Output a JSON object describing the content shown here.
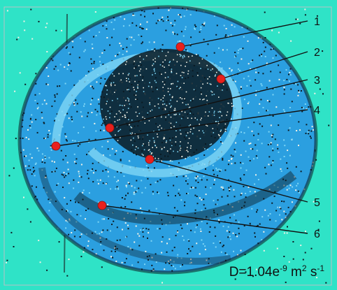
{
  "colors": {
    "background": "#2fe3c7",
    "outer_band": "#2b9fe0",
    "light_band": "#7fd6f5",
    "dark_speckle": "#0b1a22",
    "white_speckle": "#f2f2e6",
    "marker": "#e8201c",
    "leader": "#111111"
  },
  "callouts": [
    {
      "label": "1"
    },
    {
      "label": "2"
    },
    {
      "label": "3"
    },
    {
      "label": "4"
    },
    {
      "label": "5"
    },
    {
      "label": "6"
    }
  ],
  "caption": {
    "prefix": "D=1.04e",
    "exp1": "-9",
    "mid": " m",
    "exp2": "2",
    "mid2": " s",
    "exp3": "-1"
  }
}
